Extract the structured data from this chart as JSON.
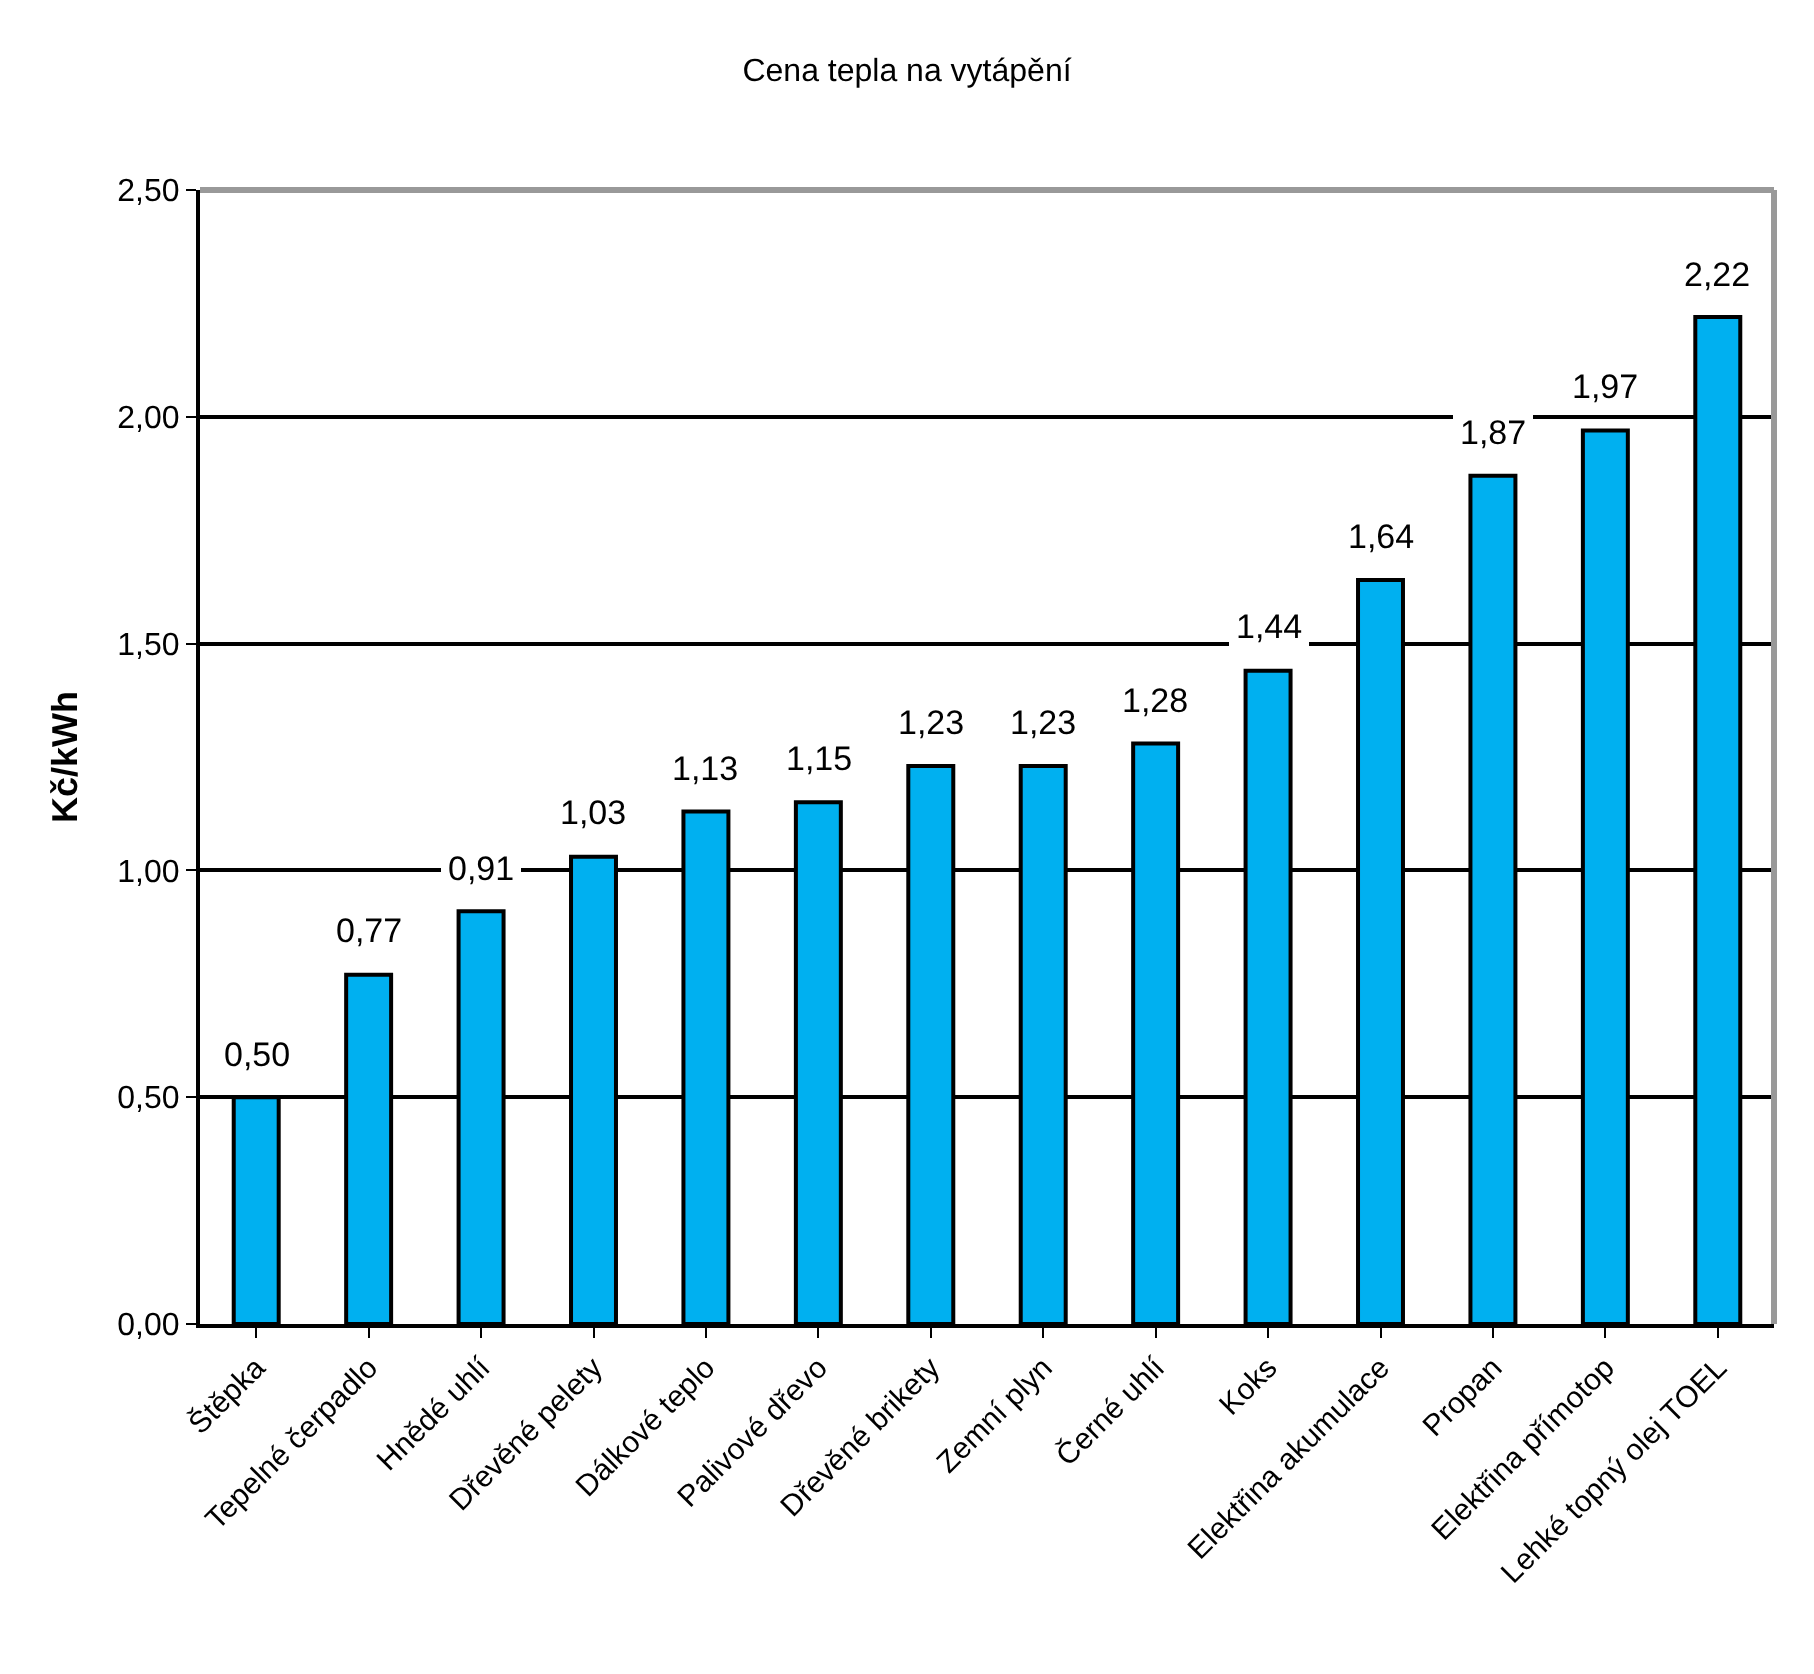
{
  "chart_data": {
    "type": "bar",
    "title": "Cena tepla na vytápění",
    "ylabel": "Kč/kWh",
    "categories": [
      "Štěpka",
      "Tepelné čerpadlo",
      "Hnědé uhlí",
      "Dřevěné pelety",
      "Dálkové teplo",
      "Palivové dřevo",
      "Dřevěné brikety",
      "Zemní plyn",
      "Černé uhlí",
      "Koks",
      "Elektřina akumulace",
      "Propan",
      "Elektřina přímotop",
      "Lehké topný olej TOEL"
    ],
    "values": [
      0.5,
      0.77,
      0.91,
      1.03,
      1.13,
      1.15,
      1.23,
      1.23,
      1.28,
      1.44,
      1.64,
      1.87,
      1.97,
      2.22
    ],
    "value_labels": [
      "0,50",
      "0,77",
      "0,91",
      "1,03",
      "1,13",
      "1,15",
      "1,23",
      "1,23",
      "1,28",
      "1,44",
      "1,64",
      "1,87",
      "1,97",
      "2,22"
    ],
    "color": "#00b0f0",
    "ylim": [
      0,
      2.5
    ],
    "yticks": [
      {
        "value": 0,
        "label": "0,00"
      },
      {
        "value": 0.5,
        "label": "0,50"
      },
      {
        "value": 1,
        "label": "1,00"
      },
      {
        "value": 1.5,
        "label": "1,50"
      },
      {
        "value": 2,
        "label": "2,00"
      },
      {
        "value": 2.5,
        "label": "2,50"
      }
    ],
    "grid": "y",
    "legend": false
  }
}
